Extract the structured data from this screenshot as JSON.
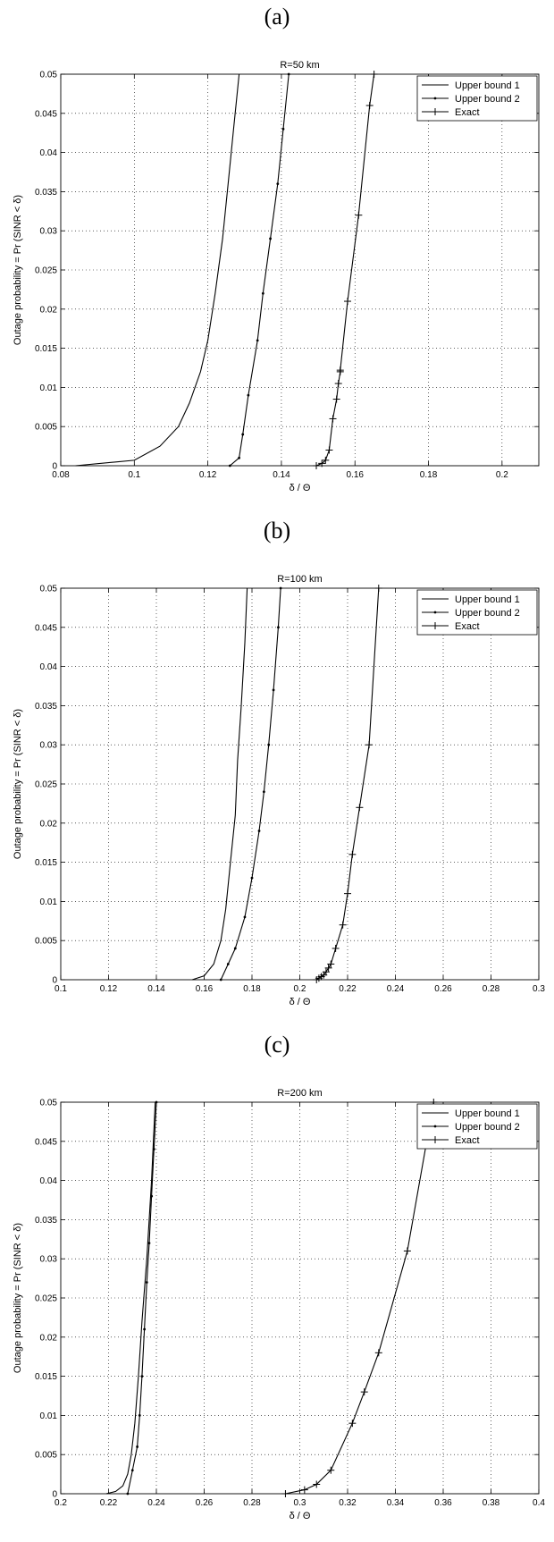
{
  "panels": [
    {
      "letter": "(a)"
    },
    {
      "letter": "(b)"
    },
    {
      "letter": "(c)"
    }
  ],
  "chart_data": [
    {
      "type": "line",
      "title": "R=50 km",
      "xlabel": "δ / Θ",
      "ylabel": "Outage probability = Pr (SINR < δ)",
      "xlim": [
        0.08,
        0.21
      ],
      "ylim": [
        0,
        0.05
      ],
      "xticks": [
        0.08,
        0.1,
        0.12,
        0.14,
        0.16,
        0.18,
        0.2
      ],
      "xtick_labels": [
        "0.08",
        "0.1",
        "0.12",
        "0.14",
        "0.16",
        "0.18",
        "0.2"
      ],
      "yticks": [
        0,
        0.005,
        0.01,
        0.015,
        0.02,
        0.025,
        0.03,
        0.035,
        0.04,
        0.045,
        0.05
      ],
      "ytick_labels": [
        "0",
        "0.005",
        "0.01",
        "0.015",
        "0.02",
        "0.025",
        "0.03",
        "0.035",
        "0.04",
        "0.045",
        "0.05"
      ],
      "grid": true,
      "legend_position": "top-right",
      "series": [
        {
          "name": "Upper bound 1",
          "marker": "none",
          "x": [
            0.084,
            0.1,
            0.107,
            0.112,
            0.115,
            0.118,
            0.12,
            0.122,
            0.124,
            0.1255,
            0.127,
            0.1285
          ],
          "y": [
            0,
            0.0007,
            0.0025,
            0.005,
            0.008,
            0.012,
            0.016,
            0.022,
            0.029,
            0.036,
            0.043,
            0.05
          ]
        },
        {
          "name": "Upper bound 2",
          "marker": "dot",
          "x": [
            0.126,
            0.1285,
            0.1295,
            0.131,
            0.1335,
            0.135,
            0.137,
            0.139,
            0.1405,
            0.142
          ],
          "y": [
            0,
            0.001,
            0.004,
            0.009,
            0.016,
            0.022,
            0.029,
            0.036,
            0.043,
            0.05
          ]
        },
        {
          "name": "Exact",
          "marker": "plus",
          "x": [
            0.1495,
            0.151,
            0.152,
            0.153,
            0.154,
            0.155,
            0.1555,
            0.156,
            0.156,
            0.158,
            0.161,
            0.164,
            0.1652
          ],
          "y": [
            0,
            0.0003,
            0.0007,
            0.002,
            0.006,
            0.0085,
            0.0105,
            0.012,
            0.0122,
            0.021,
            0.032,
            0.046,
            0.05
          ]
        }
      ]
    },
    {
      "type": "line",
      "title": "R=100 km",
      "xlabel": "δ / Θ",
      "ylabel": "Outage probability = Pr (SINR < δ)",
      "xlim": [
        0.1,
        0.3
      ],
      "ylim": [
        0,
        0.05
      ],
      "xticks": [
        0.1,
        0.12,
        0.14,
        0.16,
        0.18,
        0.2,
        0.22,
        0.24,
        0.26,
        0.28,
        0.3
      ],
      "xtick_labels": [
        "0.1",
        "0.12",
        "0.14",
        "0.16",
        "0.18",
        "0.2",
        "0.22",
        "0.24",
        "0.26",
        "0.28",
        "0.3"
      ],
      "yticks": [
        0,
        0.005,
        0.01,
        0.015,
        0.02,
        0.025,
        0.03,
        0.035,
        0.04,
        0.045,
        0.05
      ],
      "ytick_labels": [
        "0",
        "0.005",
        "0.01",
        "0.015",
        "0.02",
        "0.025",
        "0.03",
        "0.035",
        "0.04",
        "0.045",
        "0.05"
      ],
      "grid": true,
      "legend_position": "top-right",
      "series": [
        {
          "name": "Upper bound 1",
          "marker": "none",
          "x": [
            0.155,
            0.16,
            0.164,
            0.167,
            0.169,
            0.171,
            0.173,
            0.174,
            0.1755,
            0.177,
            0.178
          ],
          "y": [
            0,
            0.0005,
            0.002,
            0.005,
            0.009,
            0.015,
            0.021,
            0.028,
            0.035,
            0.043,
            0.05
          ]
        },
        {
          "name": "Upper bound 2",
          "marker": "dot",
          "x": [
            0.167,
            0.17,
            0.173,
            0.177,
            0.18,
            0.183,
            0.185,
            0.187,
            0.189,
            0.191,
            0.192
          ],
          "y": [
            0,
            0.002,
            0.004,
            0.008,
            0.013,
            0.019,
            0.024,
            0.03,
            0.037,
            0.045,
            0.05
          ]
        },
        {
          "name": "Exact",
          "marker": "plus",
          "x": [
            0.207,
            0.208,
            0.209,
            0.21,
            0.211,
            0.212,
            0.213,
            0.215,
            0.218,
            0.22,
            0.222,
            0.225,
            0.229,
            0.233
          ],
          "y": [
            0,
            0.0002,
            0.0004,
            0.0006,
            0.001,
            0.0015,
            0.002,
            0.004,
            0.007,
            0.011,
            0.016,
            0.022,
            0.03,
            0.05
          ]
        }
      ]
    },
    {
      "type": "line",
      "title": "R=200 km",
      "xlabel": "δ / Θ",
      "ylabel": "Outage probability = Pr (SINR < δ)",
      "xlim": [
        0.2,
        0.4
      ],
      "ylim": [
        0,
        0.05
      ],
      "xticks": [
        0.2,
        0.22,
        0.24,
        0.26,
        0.28,
        0.3,
        0.32,
        0.34,
        0.36,
        0.38,
        0.4
      ],
      "xtick_labels": [
        "0.2",
        "0.22",
        "0.24",
        "0.26",
        "0.28",
        "0.3",
        "0.32",
        "0.34",
        "0.36",
        "0.38",
        "0.4"
      ],
      "yticks": [
        0,
        0.005,
        0.01,
        0.015,
        0.02,
        0.025,
        0.03,
        0.035,
        0.04,
        0.045,
        0.05
      ],
      "ytick_labels": [
        "0",
        "0.005",
        "0.01",
        "0.015",
        "0.02",
        "0.025",
        "0.03",
        "0.035",
        "0.04",
        "0.045",
        "0.05"
      ],
      "grid": true,
      "legend_position": "top-right",
      "series": [
        {
          "name": "Upper bound 1",
          "marker": "none",
          "x": [
            0.219,
            0.223,
            0.226,
            0.228,
            0.2295,
            0.231,
            0.2325,
            0.234,
            0.236,
            0.238,
            0.2395
          ],
          "y": [
            0,
            0.0003,
            0.001,
            0.0025,
            0.005,
            0.009,
            0.015,
            0.022,
            0.03,
            0.04,
            0.05
          ]
        },
        {
          "name": "Upper bound 2",
          "marker": "dot",
          "x": [
            0.228,
            0.23,
            0.232,
            0.233,
            0.234,
            0.235,
            0.236,
            0.237,
            0.238,
            0.239,
            0.24
          ],
          "y": [
            0,
            0.003,
            0.006,
            0.01,
            0.015,
            0.021,
            0.027,
            0.032,
            0.038,
            0.044,
            0.05
          ]
        },
        {
          "name": "Exact",
          "marker": "plus",
          "x": [
            0.294,
            0.302,
            0.307,
            0.313,
            0.322,
            0.327,
            0.333,
            0.345,
            0.356
          ],
          "y": [
            0,
            0.0005,
            0.0012,
            0.003,
            0.009,
            0.013,
            0.018,
            0.031,
            0.05
          ]
        }
      ]
    }
  ]
}
